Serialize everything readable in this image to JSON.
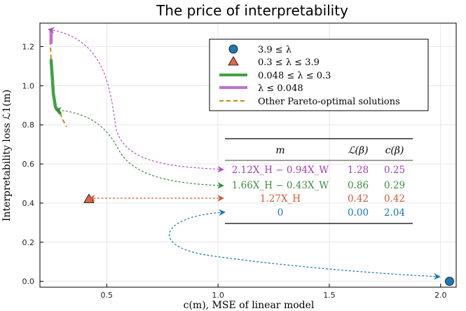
{
  "chart_data": {
    "type": "scatter",
    "title": "The price of interpretability",
    "xlabel": "c(m), MSE of linear model",
    "ylabel": "Interpretability loss ℒ1(m)",
    "xlim": [
      0.2,
      2.07
    ],
    "ylim": [
      -0.03,
      1.32
    ],
    "x_ticks": [
      0.5,
      1.0,
      1.5,
      2.0
    ],
    "x_tick_labels": [
      "0.5",
      "1.0",
      "1.5",
      "2.0"
    ],
    "y_ticks": [
      0.0,
      0.2,
      0.4,
      0.6,
      0.8,
      1.0,
      1.2
    ],
    "y_tick_labels": [
      "0.0",
      "0.2",
      "0.4",
      "0.6",
      "0.8",
      "1.0",
      "1.2"
    ],
    "grid": true,
    "legend_placement": "top-right",
    "series": [
      {
        "name": "3.9 ≤ λ",
        "kind": "point-circle",
        "color": "#1f77b4",
        "points": [
          [
            2.04,
            0.0
          ]
        ]
      },
      {
        "name": "0.3 ≤ λ ≤ 3.9",
        "kind": "point-triangle",
        "color": "#e1664a",
        "points": [
          [
            0.42,
            0.42
          ]
        ]
      },
      {
        "name": "0.048 ≤ λ ≤ 0.3",
        "kind": "thick-line",
        "color": "#3fa244",
        "points": [
          [
            0.25,
            1.13
          ],
          [
            0.255,
            1.05
          ],
          [
            0.26,
            0.96
          ],
          [
            0.27,
            0.89
          ],
          [
            0.29,
            0.86
          ]
        ]
      },
      {
        "name": "λ ≤ 0.048",
        "kind": "thick-line",
        "color": "#c070d0",
        "points": [
          [
            0.25,
            1.22
          ],
          [
            0.25,
            1.28
          ]
        ]
      },
      {
        "name": "Other Pareto-optimal solutions",
        "kind": "dashed-line",
        "color": "#b8901c",
        "points": [
          [
            0.245,
            1.23
          ],
          [
            0.25,
            1.15
          ],
          [
            0.25,
            1.13
          ]
        ]
      },
      {
        "name": "Other Pareto-optimal solutions tail",
        "legend": false,
        "kind": "dashed-line",
        "color": "#b8901c",
        "points": [
          [
            0.29,
            0.86
          ],
          [
            0.305,
            0.82
          ],
          [
            0.32,
            0.79
          ]
        ]
      }
    ],
    "table": {
      "headers": [
        "m",
        "ℒ(β)",
        "c(β)"
      ],
      "rows": [
        {
          "m": "2.12X_H − 0.94X_W",
          "loss": "1.28",
          "cost": "0.25",
          "color": "#a040b0"
        },
        {
          "m": "1.66X_H − 0.43X_W",
          "loss": "0.86",
          "cost": "0.29",
          "color": "#3a8c3e"
        },
        {
          "m": "1.27X_H",
          "loss": "0.42",
          "cost": "0.42",
          "color": "#d05a38"
        },
        {
          "m": "0",
          "loss": "0.00",
          "cost": "2.04",
          "color": "#1a78b0"
        }
      ]
    },
    "colors": {
      "blue": "#1f77b4",
      "orange": "#e1664a",
      "green": "#3fa244",
      "purple": "#c070d0",
      "gold": "#b8901c"
    }
  }
}
